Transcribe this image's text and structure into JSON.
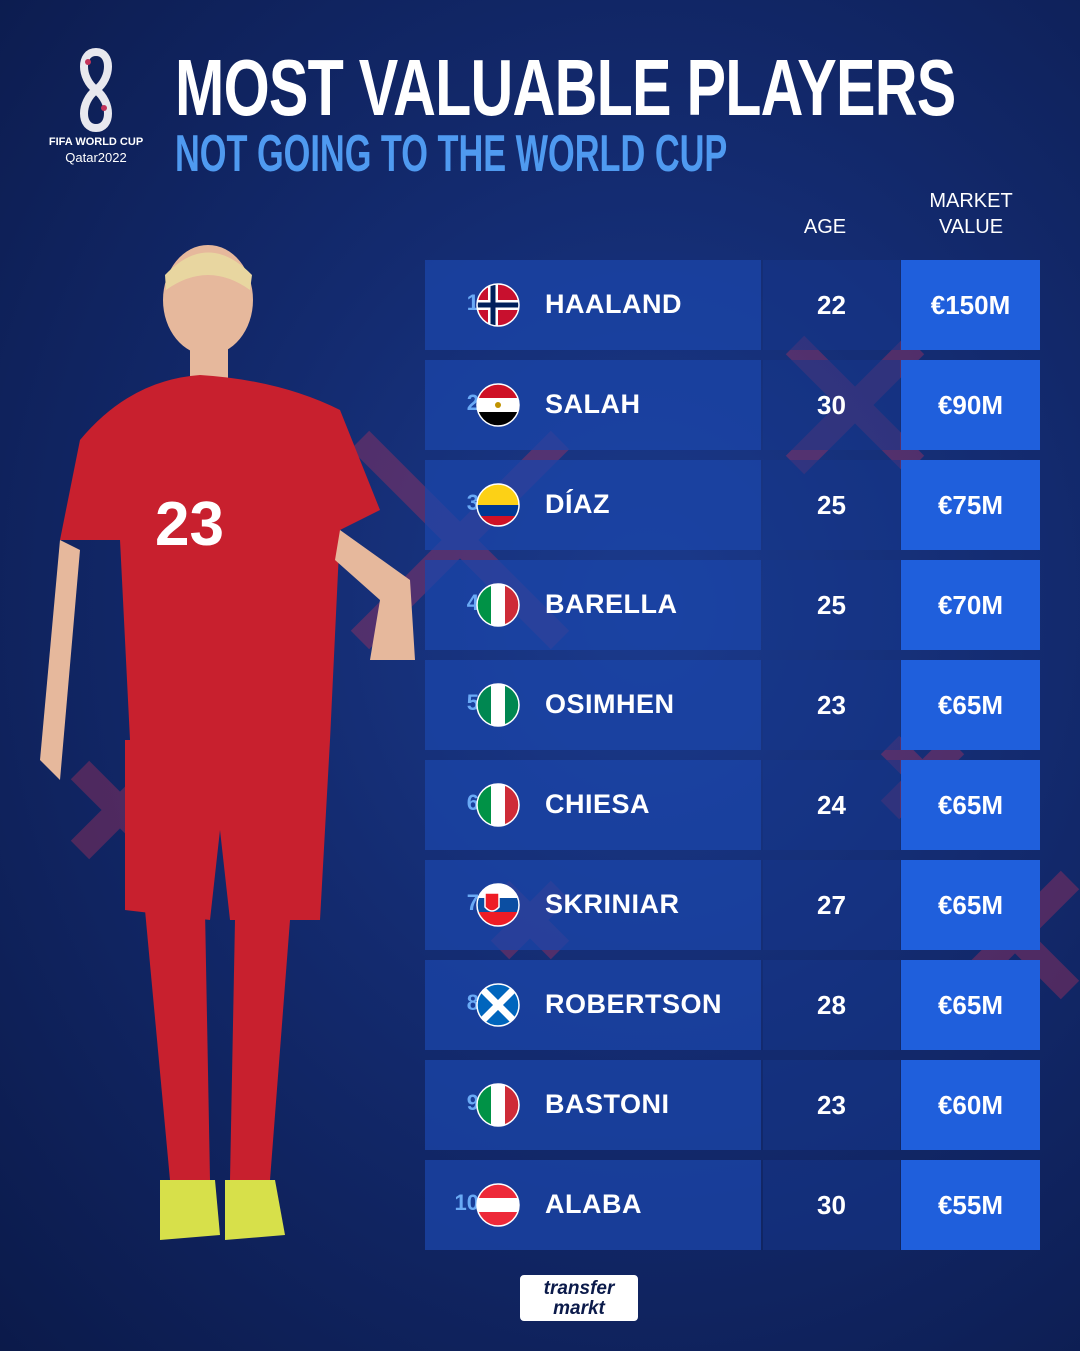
{
  "logo": {
    "line1": "FIFA WORLD CUP",
    "line2": "Qatar2022"
  },
  "title": "MOST VALUABLE PLAYERS",
  "subtitle": "NOT GOING TO THE WORLD CUP",
  "headers": {
    "age": "AGE",
    "market_value": "MARKET VALUE"
  },
  "colors": {
    "accent": "#4f9af0",
    "value_cell": "#1f5fdc",
    "background": "#132a6e"
  },
  "players": [
    {
      "rank": "1",
      "name": "HAALAND",
      "flag": "norway",
      "age": "22",
      "value": "€150M"
    },
    {
      "rank": "2",
      "name": "SALAH",
      "flag": "egypt",
      "age": "30",
      "value": "€90M"
    },
    {
      "rank": "3",
      "name": "DÍAZ",
      "flag": "colombia",
      "age": "25",
      "value": "€75M"
    },
    {
      "rank": "4",
      "name": "BARELLA",
      "flag": "italy",
      "age": "25",
      "value": "€70M"
    },
    {
      "rank": "5",
      "name": "OSIMHEN",
      "flag": "nigeria",
      "age": "23",
      "value": "€65M"
    },
    {
      "rank": "6",
      "name": "CHIESA",
      "flag": "italy",
      "age": "24",
      "value": "€65M"
    },
    {
      "rank": "7",
      "name": "SKRINIAR",
      "flag": "slovakia",
      "age": "27",
      "value": "€65M"
    },
    {
      "rank": "8",
      "name": "ROBERTSON",
      "flag": "scotland",
      "age": "28",
      "value": "€65M"
    },
    {
      "rank": "9",
      "name": "BASTONI",
      "flag": "italy",
      "age": "23",
      "value": "€60M"
    },
    {
      "rank": "10",
      "name": "ALABA",
      "flag": "austria",
      "age": "30",
      "value": "€55M"
    }
  ],
  "player_photo": {
    "shirt_number": "23"
  },
  "brand": {
    "line1": "transfer",
    "line2": "markt"
  }
}
